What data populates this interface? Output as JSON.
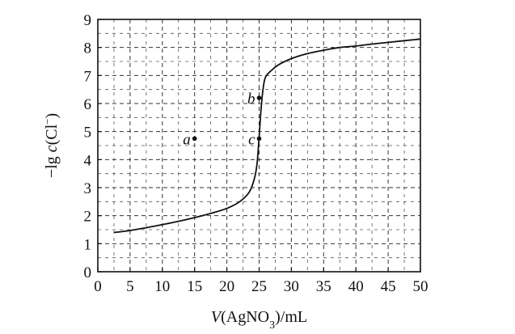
{
  "chart_data": {
    "type": "line",
    "title": "",
    "xlabel_parts": [
      "V",
      "(AgNO",
      "3",
      ")/mL"
    ],
    "ylabel_parts": [
      "−lg ",
      "c",
      "(Cl",
      "−",
      ")"
    ],
    "xlim": [
      0,
      50
    ],
    "ylim": [
      0,
      9
    ],
    "x_ticks": [
      "0",
      "5",
      "10",
      "15",
      "20",
      "25",
      "30",
      "35",
      "40",
      "45",
      "50"
    ],
    "y_ticks": [
      "0",
      "1",
      "2",
      "3",
      "4",
      "5",
      "6",
      "7",
      "8",
      "9"
    ],
    "x_minor_step": 2.5,
    "y_minor_step": 0.5,
    "grid": true,
    "series": [
      {
        "x": [
          2.5,
          5,
          7.5,
          10,
          12.5,
          15,
          17.5,
          20,
          22,
          23.5,
          24.3,
          24.7,
          25,
          25.3,
          25.6,
          26,
          27,
          28,
          30,
          32.5,
          35,
          37.5,
          40,
          42.5,
          45,
          47.5,
          50
        ],
        "y": [
          1.4,
          1.47,
          1.57,
          1.68,
          1.8,
          1.93,
          2.08,
          2.26,
          2.5,
          2.85,
          3.35,
          3.9,
          4.8,
          5.8,
          6.5,
          6.95,
          7.2,
          7.38,
          7.6,
          7.78,
          7.9,
          8.0,
          8.05,
          8.12,
          8.18,
          8.24,
          8.3
        ]
      }
    ],
    "points": [
      {
        "label": "a",
        "x": 15,
        "y": 4.75
      },
      {
        "label": "b",
        "x": 25,
        "y": 6.2
      },
      {
        "label": "c",
        "x": 25,
        "y": 4.75
      }
    ]
  }
}
